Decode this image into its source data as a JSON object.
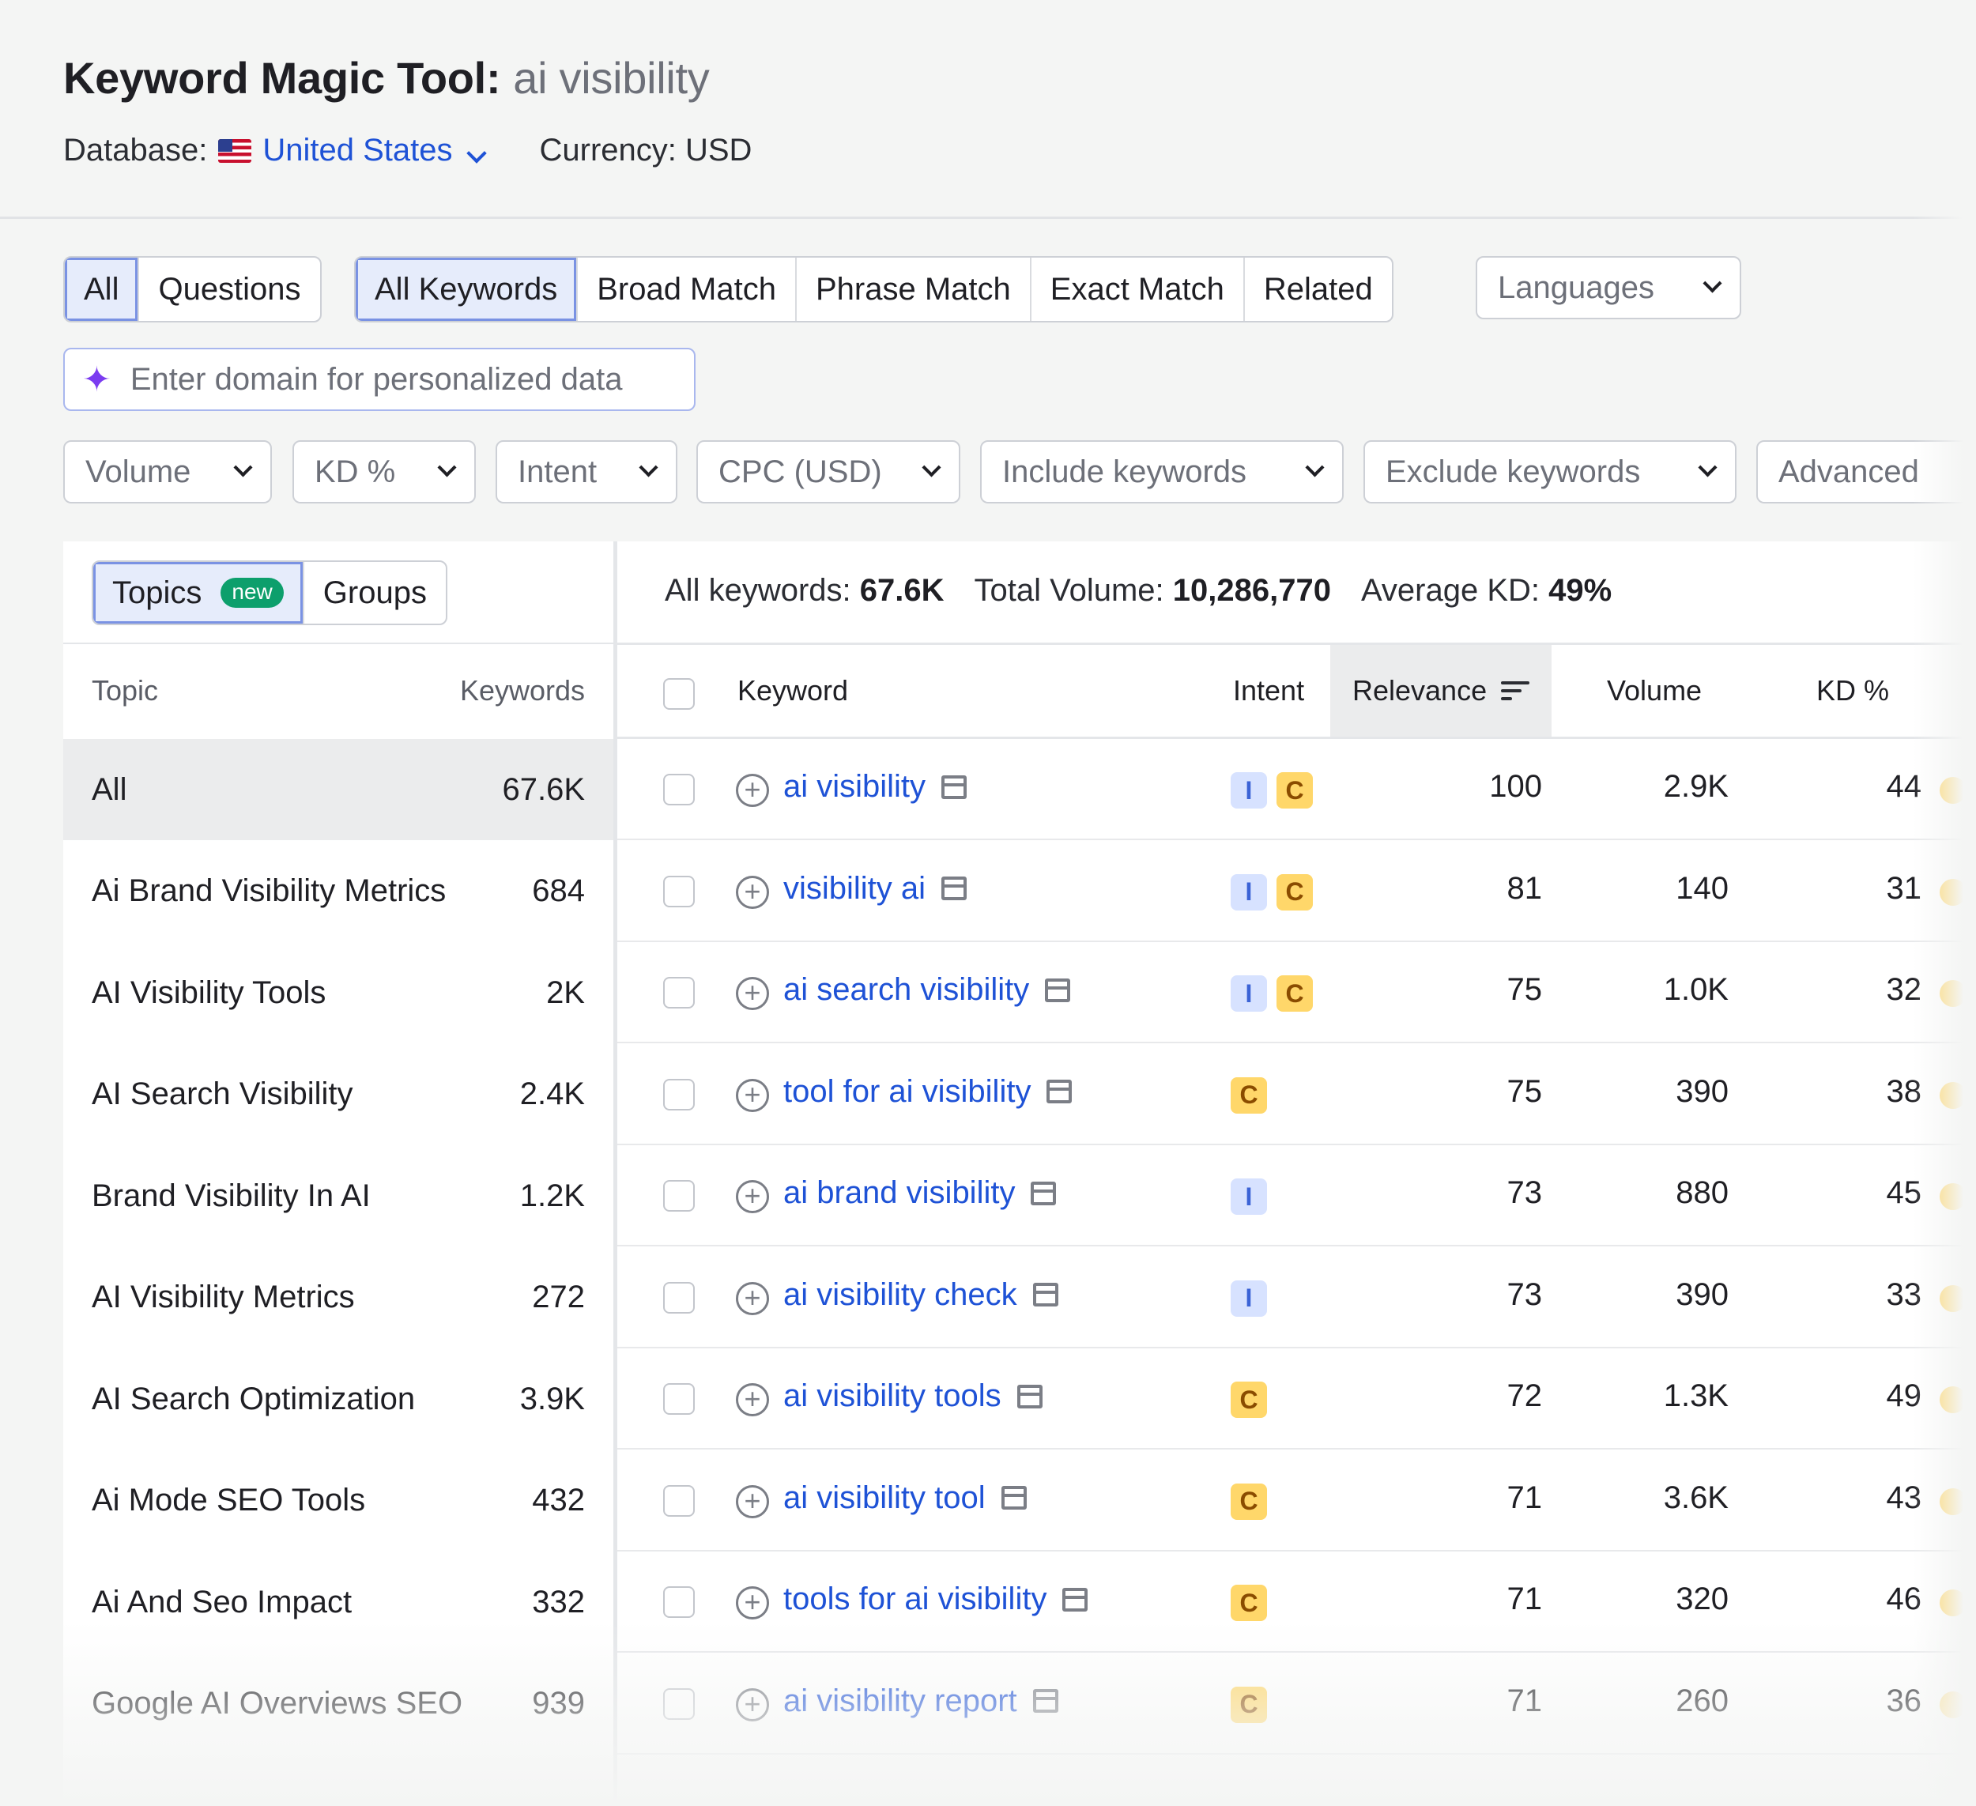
{
  "header": {
    "title": "Keyword Magic Tool:",
    "query": "ai visibility",
    "database_label": "Database:",
    "database_value": "United States",
    "currency": "Currency: USD"
  },
  "tabs": {
    "scope": [
      "All",
      "Questions"
    ],
    "match": [
      "All Keywords",
      "Broad Match",
      "Phrase Match",
      "Exact Match",
      "Related"
    ],
    "languages": "Languages"
  },
  "domain_input": {
    "placeholder": "Enter domain for personalized data"
  },
  "filters": [
    "Volume",
    "KD %",
    "Intent",
    "CPC (USD)",
    "Include keywords",
    "Exclude keywords",
    "Advanced"
  ],
  "sidebar": {
    "tabs": [
      "Topics",
      "Groups"
    ],
    "new_badge": "new",
    "columns": [
      "Topic",
      "Keywords"
    ],
    "topics": [
      {
        "name": "All",
        "count": "67.6K"
      },
      {
        "name": "Ai Brand Visibility Metrics",
        "count": "684"
      },
      {
        "name": "AI Visibility Tools",
        "count": "2K"
      },
      {
        "name": "AI Search Visibility",
        "count": "2.4K"
      },
      {
        "name": "Brand Visibility In AI",
        "count": "1.2K"
      },
      {
        "name": "AI Visibility Metrics",
        "count": "272"
      },
      {
        "name": "AI Search Optimization",
        "count": "3.9K"
      },
      {
        "name": "Ai Mode SEO Tools",
        "count": "432"
      },
      {
        "name": "Ai And Seo Impact",
        "count": "332"
      },
      {
        "name": "Google AI Overviews SEO",
        "count": "939"
      }
    ]
  },
  "summary": {
    "all_label": "All keywords:",
    "all_value": "67.6K",
    "volume_label": "Total Volume:",
    "volume_value": "10,286,770",
    "kd_label": "Average KD:",
    "kd_value": "49%"
  },
  "table": {
    "columns": [
      "Keyword",
      "Intent",
      "Relevance",
      "Volume",
      "KD %"
    ],
    "rows": [
      {
        "keyword": "ai visibility",
        "intent": [
          "I",
          "C"
        ],
        "relevance": "100",
        "volume": "2.9K",
        "kd": "44"
      },
      {
        "keyword": "visibility ai",
        "intent": [
          "I",
          "C"
        ],
        "relevance": "81",
        "volume": "140",
        "kd": "31"
      },
      {
        "keyword": "ai search visibility",
        "intent": [
          "I",
          "C"
        ],
        "relevance": "75",
        "volume": "1.0K",
        "kd": "32"
      },
      {
        "keyword": "tool for ai visibility",
        "intent": [
          "C"
        ],
        "relevance": "75",
        "volume": "390",
        "kd": "38"
      },
      {
        "keyword": "ai brand visibility",
        "intent": [
          "I"
        ],
        "relevance": "73",
        "volume": "880",
        "kd": "45"
      },
      {
        "keyword": "ai visibility check",
        "intent": [
          "I"
        ],
        "relevance": "73",
        "volume": "390",
        "kd": "33"
      },
      {
        "keyword": "ai visibility tools",
        "intent": [
          "C"
        ],
        "relevance": "72",
        "volume": "1.3K",
        "kd": "49"
      },
      {
        "keyword": "ai visibility tool",
        "intent": [
          "C"
        ],
        "relevance": "71",
        "volume": "3.6K",
        "kd": "43"
      },
      {
        "keyword": "tools for ai visibility",
        "intent": [
          "C"
        ],
        "relevance": "71",
        "volume": "320",
        "kd": "46"
      },
      {
        "keyword": "ai visibility report",
        "intent": [
          "C"
        ],
        "relevance": "71",
        "volume": "260",
        "kd": "36"
      }
    ]
  },
  "colors": {
    "link": "#1e52d6",
    "intent_i": "#d7e2ff",
    "intent_c": "#ffd76a",
    "kd_medium": "#ffcf4d",
    "new_badge": "#0d9f6c"
  }
}
